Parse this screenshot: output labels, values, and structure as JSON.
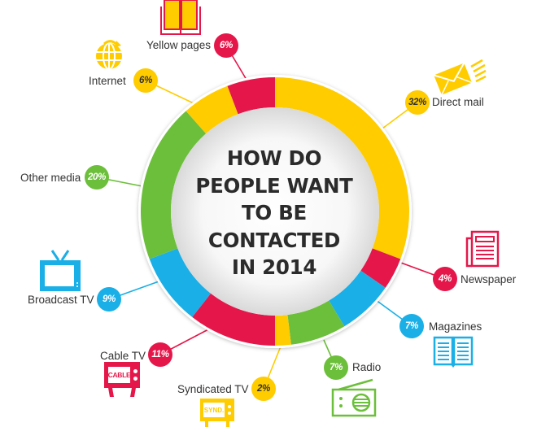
{
  "title_lines": [
    "HOW DO",
    "PEOPLE WANT",
    "TO BE",
    "CONTACTED",
    "IN 2014"
  ],
  "colors": {
    "yellow": "#FFCC00",
    "red": "#E5174A",
    "blue": "#1AAFE6",
    "green": "#6CBF3A",
    "text": "#333333",
    "title": "#2b2b2b"
  },
  "chart_data": {
    "type": "pie",
    "variant": "donut",
    "title": "HOW DO PEOPLE WANT TO BE CONTACTED IN 2014",
    "categories": [
      "Direct mail",
      "Newspaper",
      "Magazines",
      "Radio",
      "Syndicated TV",
      "Cable TV",
      "Broadcast TV",
      "Other media",
      "Internet",
      "Yellow pages"
    ],
    "values": [
      32,
      4,
      7,
      7,
      2,
      11,
      9,
      20,
      6,
      6
    ],
    "unit": "%",
    "segment_colors": [
      "#FFCC00",
      "#E5174A",
      "#1AAFE6",
      "#6CBF3A",
      "#FFCC00",
      "#E5174A",
      "#1AAFE6",
      "#6CBF3A",
      "#FFCC00",
      "#E5174A"
    ],
    "start_angle_deg": 0,
    "direction": "clockwise",
    "legend": "callout labels around ring"
  },
  "callouts": [
    {
      "label": "Direct mail",
      "value_text": "32%",
      "color": "#FFCC00",
      "value_color": "#333333",
      "icon": "envelope-icon"
    },
    {
      "label": "Newspaper",
      "value_text": "4%",
      "color": "#E5174A",
      "value_color": "#ffffff",
      "icon": "newspaper-icon"
    },
    {
      "label": "Magazines",
      "value_text": "7%",
      "color": "#1AAFE6",
      "value_color": "#ffffff",
      "icon": "open-magazine-icon"
    },
    {
      "label": "Radio",
      "value_text": "7%",
      "color": "#6CBF3A",
      "value_color": "#ffffff",
      "icon": "radio-icon"
    },
    {
      "label": "Syndicated TV",
      "value_text": "2%",
      "color": "#FFCC00",
      "value_color": "#333333",
      "icon": "synd-tv-icon",
      "icon_text": "SYND."
    },
    {
      "label": "Cable TV",
      "value_text": "11%",
      "color": "#E5174A",
      "value_color": "#ffffff",
      "icon": "cable-tv-icon",
      "icon_text": "CABLE"
    },
    {
      "label": "Broadcast TV",
      "value_text": "9%",
      "color": "#1AAFE6",
      "value_color": "#ffffff",
      "icon": "tv-icon"
    },
    {
      "label": "Other media",
      "value_text": "20%",
      "color": "#6CBF3A",
      "value_color": "#ffffff",
      "icon": null
    },
    {
      "label": "Internet",
      "value_text": "6%",
      "color": "#FFCC00",
      "value_color": "#333333",
      "icon": "globe-icon"
    },
    {
      "label": "Yellow pages",
      "value_text": "6%",
      "color": "#E5174A",
      "value_color": "#ffffff",
      "icon": "book-icon"
    }
  ]
}
